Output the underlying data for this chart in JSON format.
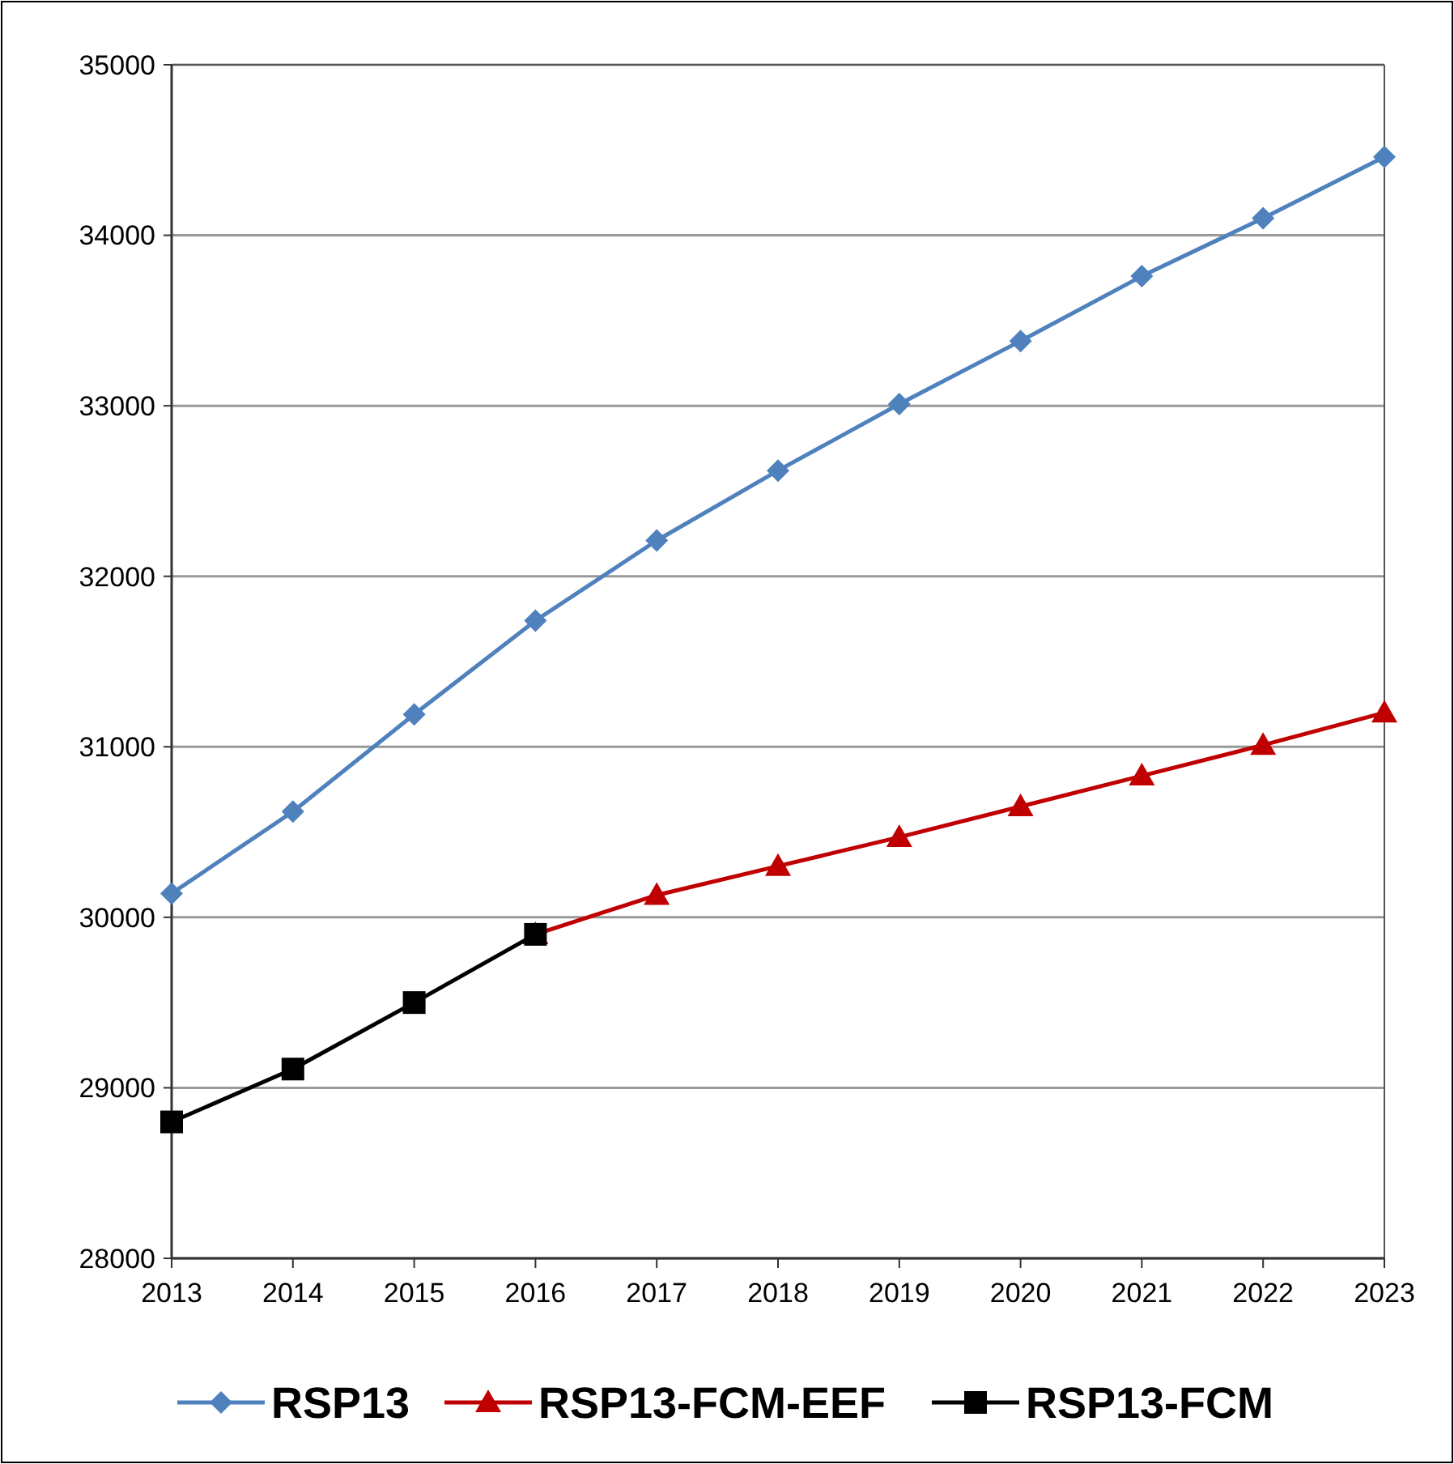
{
  "chart_data": {
    "type": "line",
    "categories": [
      "2013",
      "2014",
      "2015",
      "2016",
      "2017",
      "2018",
      "2019",
      "2020",
      "2021",
      "2022",
      "2023"
    ],
    "series": [
      {
        "name": "RSP13",
        "color": "#4f81bd",
        "marker": "diamond",
        "values": [
          30140,
          30620,
          31190,
          31740,
          32210,
          32620,
          33010,
          33380,
          33760,
          34100,
          34460
        ]
      },
      {
        "name": "RSP13-FCM-EEF",
        "color": "#c00000",
        "marker": "triangle",
        "values": [
          null,
          null,
          null,
          29900,
          30130,
          30300,
          30470,
          30650,
          30830,
          31010,
          31200
        ]
      },
      {
        "name": "RSP13-FCM",
        "color": "#000000",
        "marker": "square",
        "values": [
          28800,
          29110,
          29500,
          29900,
          null,
          null,
          null,
          null,
          null,
          null,
          null
        ]
      }
    ],
    "ylim": [
      28000,
      35000
    ],
    "yticks": [
      28000,
      29000,
      30000,
      31000,
      32000,
      33000,
      34000,
      35000
    ],
    "grid": "y",
    "legend": "bottom"
  }
}
